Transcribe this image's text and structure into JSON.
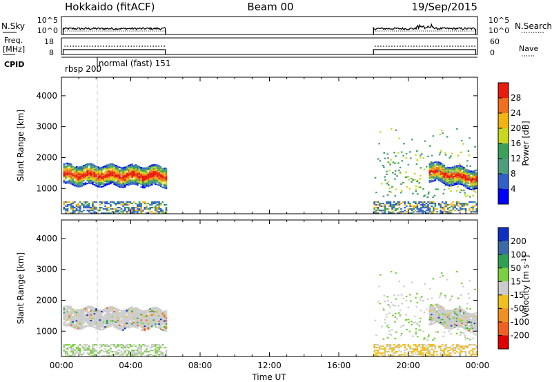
{
  "header": {
    "station": "Hokkaido (fitACF)",
    "beam": "Beam 00",
    "date": "19/Sep/2015"
  },
  "chart_data": [
    {
      "type": "line",
      "panel": "noise",
      "left_label": "N.Sky",
      "right_label": "N.Search",
      "left_ticks": [
        "10^5",
        "10^0"
      ],
      "right_ticks": [
        "10^5",
        "10^0"
      ],
      "x_hours": [
        0,
        24
      ],
      "data_hours": [
        [
          0.1,
          6.0
        ],
        [
          18.0,
          23.9
        ]
      ]
    },
    {
      "type": "line",
      "panel": "frequency",
      "left_label_1": "Freq.",
      "left_label_2": "[MHz]",
      "right_label": "Nave",
      "left_ticks": [
        "18",
        "8"
      ],
      "right_ticks": [
        "60",
        "0"
      ],
      "freq_mhz": 11,
      "data_hours": [
        [
          0.1,
          6.0
        ],
        [
          18.0,
          23.9
        ]
      ]
    },
    {
      "type": "table",
      "panel": "cpid",
      "label": "CPID",
      "segments": [
        {
          "name": "rbsp 200",
          "start_hour": 0,
          "end_hour": 2
        },
        {
          "name": "normal (fast) 151",
          "start_hour": 2,
          "end_hour": 24
        }
      ]
    },
    {
      "type": "heatmap",
      "panel": "power",
      "ylabel": "Slant Range [km]",
      "ylim": [
        180,
        4600
      ],
      "yticks": [
        1000,
        2000,
        3000,
        4000
      ],
      "colorbar_label": "Power [dB]",
      "colorbar_ticks": [
        4,
        8,
        12,
        16,
        20,
        24,
        28
      ],
      "colorbar_range": [
        0,
        32
      ],
      "colors": [
        "#0000ff",
        "#3060c8",
        "#4e9e7e",
        "#3aa05a",
        "#c8d820",
        "#f2b410",
        "#f07020",
        "#e81c0c"
      ],
      "echo_bands": [
        {
          "start_hour": 0.1,
          "end_hour": 6.0,
          "center_km_start": 1450,
          "center_km_end": 1400,
          "width_km": 650
        },
        {
          "start_hour": 21.2,
          "end_hour": 23.9,
          "center_km_start": 1550,
          "center_km_end": 1300,
          "width_km": 600
        }
      ]
    },
    {
      "type": "heatmap",
      "panel": "velocity",
      "xlabel": "Time UT",
      "ylabel": "Slant Range [km]",
      "ylim": [
        180,
        4600
      ],
      "yticks": [
        1000,
        2000,
        3000,
        4000
      ],
      "colorbar_label": "Velocity [m s-1]",
      "colorbar_ticks": [
        "200",
        "100",
        "50",
        "15",
        "-15",
        "-50",
        "-100",
        "-200"
      ],
      "colors": [
        "#1030c0",
        "#3a6aa8",
        "#2ea050",
        "#7ad040",
        "#cccccc",
        "#f0c020",
        "#f09020",
        "#f06020",
        "#e00000"
      ],
      "xticks": [
        "00:00",
        "04:00",
        "08:00",
        "12:00",
        "16:00",
        "20:00",
        "00:00"
      ]
    }
  ]
}
